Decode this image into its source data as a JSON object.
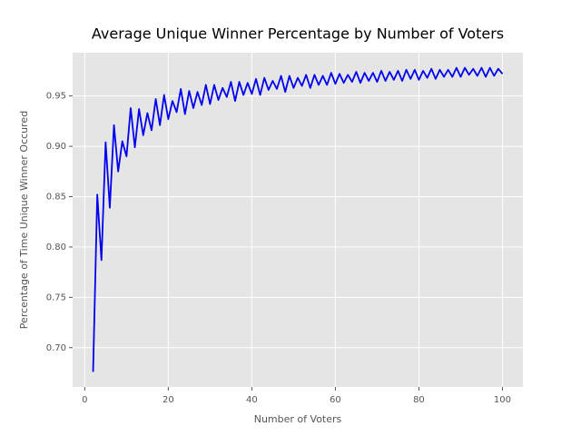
{
  "chart_data": {
    "type": "line",
    "title": "Average Unique Winner Percentage by Number of Voters",
    "x_label": "Number of Voters",
    "y_label": "Percentage of Time Unique Winner Occured",
    "x": [
      2,
      3,
      4,
      5,
      6,
      7,
      8,
      9,
      10,
      11,
      12,
      13,
      14,
      15,
      16,
      17,
      18,
      19,
      20,
      21,
      22,
      23,
      24,
      25,
      26,
      27,
      28,
      29,
      30,
      31,
      32,
      33,
      34,
      35,
      36,
      37,
      38,
      39,
      40,
      41,
      42,
      43,
      44,
      45,
      46,
      47,
      48,
      49,
      50,
      51,
      52,
      53,
      54,
      55,
      56,
      57,
      58,
      59,
      60,
      61,
      62,
      63,
      64,
      65,
      66,
      67,
      68,
      69,
      70,
      71,
      72,
      73,
      74,
      75,
      76,
      77,
      78,
      79,
      80,
      81,
      82,
      83,
      84,
      85,
      86,
      87,
      88,
      89,
      90,
      91,
      92,
      93,
      94,
      95,
      96,
      97,
      98,
      99,
      100
    ],
    "series": [
      {
        "color": "#0000ee",
        "values": [
          0.676,
          0.852,
          0.787,
          0.904,
          0.839,
          0.921,
          0.875,
          0.905,
          0.89,
          0.938,
          0.899,
          0.937,
          0.911,
          0.933,
          0.916,
          0.947,
          0.921,
          0.951,
          0.927,
          0.945,
          0.934,
          0.957,
          0.932,
          0.955,
          0.938,
          0.954,
          0.941,
          0.961,
          0.942,
          0.961,
          0.946,
          0.958,
          0.949,
          0.964,
          0.945,
          0.964,
          0.951,
          0.963,
          0.952,
          0.967,
          0.951,
          0.968,
          0.956,
          0.965,
          0.957,
          0.97,
          0.954,
          0.97,
          0.958,
          0.968,
          0.96,
          0.971,
          0.958,
          0.971,
          0.961,
          0.97,
          0.961,
          0.973,
          0.962,
          0.972,
          0.963,
          0.971,
          0.964,
          0.974,
          0.963,
          0.973,
          0.965,
          0.973,
          0.964,
          0.975,
          0.965,
          0.974,
          0.966,
          0.975,
          0.965,
          0.976,
          0.967,
          0.976,
          0.966,
          0.975,
          0.968,
          0.977,
          0.967,
          0.976,
          0.969,
          0.976,
          0.969,
          0.978,
          0.969,
          0.978,
          0.971,
          0.977,
          0.97,
          0.978,
          0.969,
          0.978,
          0.97,
          0.977,
          0.972
        ]
      }
    ],
    "xlim": [
      -2.9,
      104.9
    ],
    "ylim": [
      0.661,
      0.993
    ],
    "xticks": [
      0,
      20,
      40,
      60,
      80,
      100
    ],
    "yticks": [
      {
        "value": 0.7,
        "label": "0.70"
      },
      0.75,
      {
        "value": 0.8,
        "label": "0.80"
      },
      0.85,
      {
        "value": 0.9,
        "label": "0.90"
      },
      0.95
    ],
    "grid": true
  }
}
